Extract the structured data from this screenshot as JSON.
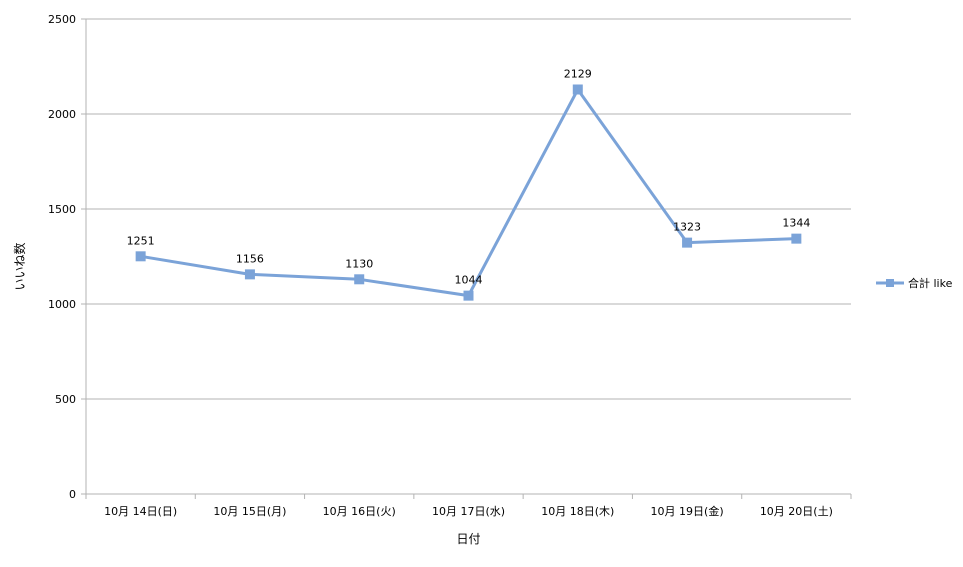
{
  "chart_data": {
    "type": "line",
    "categories": [
      "10月 14日(日)",
      "10月 15日(月)",
      "10月 16日(火)",
      "10月 17日(水)",
      "10月 18日(木)",
      "10月 19日(金)",
      "10月 20日(土)"
    ],
    "series": [
      {
        "name": "合計 like",
        "values": [
          1251,
          1156,
          1130,
          1044,
          2129,
          1323,
          1344
        ],
        "color": "#7ba3d8"
      }
    ],
    "data_labels": [
      "1251",
      "1156",
      "1130",
      "1044",
      "2129",
      "1323",
      "1344"
    ],
    "xlabel": "日付",
    "ylabel": "いいね数",
    "ylim": [
      0,
      2500
    ],
    "yticks": [
      "0",
      "500",
      "1000",
      "1500",
      "2000",
      "2500"
    ],
    "grid": true,
    "legend_position": "right"
  }
}
